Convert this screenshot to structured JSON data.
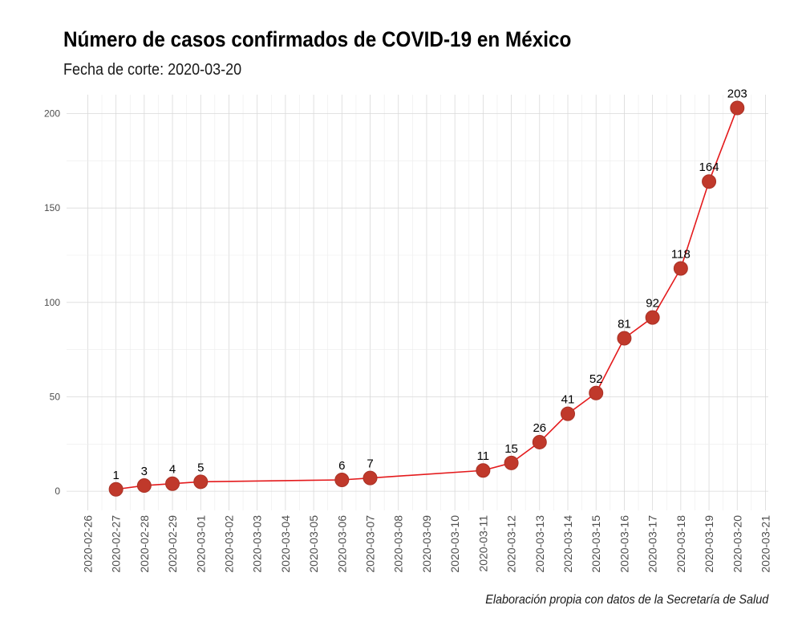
{
  "chart_data": {
    "type": "line",
    "title": "Número de casos confirmados de COVID-19 en México",
    "subtitle": "Fecha de corte: 2020-03-20",
    "caption": "Elaboración propia con datos de la Secretaría de Salud",
    "xlabel": "",
    "ylabel": "",
    "x_range": [
      "2020-02-26",
      "2020-03-21"
    ],
    "ylim": [
      0,
      210
    ],
    "yticks": [
      0,
      50,
      100,
      150,
      200
    ],
    "xticks": [
      "2020-02-26",
      "2020-02-27",
      "2020-02-28",
      "2020-02-29",
      "2020-03-01",
      "2020-03-02",
      "2020-03-03",
      "2020-03-04",
      "2020-03-05",
      "2020-03-06",
      "2020-03-07",
      "2020-03-08",
      "2020-03-09",
      "2020-03-10",
      "2020-03-11",
      "2020-03-12",
      "2020-03-13",
      "2020-03-14",
      "2020-03-15",
      "2020-03-16",
      "2020-03-17",
      "2020-03-18",
      "2020-03-19",
      "2020-03-20",
      "2020-03-21"
    ],
    "grid": true,
    "line_color": "#e41a1c",
    "point_color": "#c0392b",
    "series": [
      {
        "points": [
          {
            "x": "2020-02-27",
            "y": 1
          },
          {
            "x": "2020-02-28",
            "y": 3
          },
          {
            "x": "2020-02-29",
            "y": 4
          },
          {
            "x": "2020-03-01",
            "y": 5
          },
          {
            "x": "2020-03-06",
            "y": 6
          },
          {
            "x": "2020-03-07",
            "y": 7
          },
          {
            "x": "2020-03-11",
            "y": 11
          },
          {
            "x": "2020-03-12",
            "y": 15
          },
          {
            "x": "2020-03-13",
            "y": 26
          },
          {
            "x": "2020-03-14",
            "y": 41
          },
          {
            "x": "2020-03-15",
            "y": 52
          },
          {
            "x": "2020-03-16",
            "y": 81
          },
          {
            "x": "2020-03-17",
            "y": 92
          },
          {
            "x": "2020-03-18",
            "y": 118
          },
          {
            "x": "2020-03-19",
            "y": 164
          },
          {
            "x": "2020-03-20",
            "y": 203
          }
        ]
      }
    ]
  }
}
